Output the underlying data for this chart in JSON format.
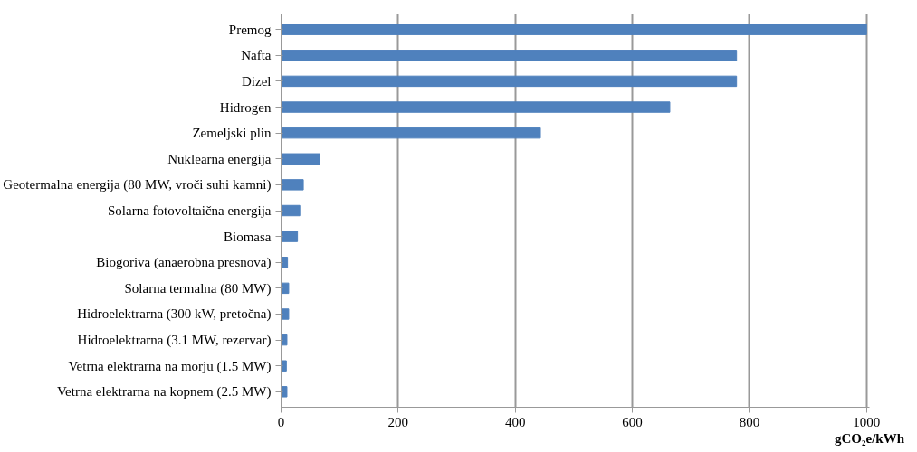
{
  "chart_data": {
    "type": "bar",
    "orientation": "horizontal",
    "xlabel": "gCO₂e/kWh",
    "categories": [
      "Premog",
      "Nafta",
      "Dizel",
      "Hidrogen",
      "Zemeljski plin",
      "Nuklearna energija",
      "Geotermalna energija (80 MW, vroči suhi kamni)",
      "Solarna fotovoltaična energija",
      "Biomasa",
      "Biogoriva (anaerobna presnova)",
      "Solarna termalna (80 MW)",
      "Hidroelektrarna (300 kW, pretočna)",
      "Hidroelektrarna (3.1 MW, rezervar)",
      "Vetrna elektrarna na morju (1.5 MW)",
      "Vetrna elektrarna na kopnem (2.5 MW)"
    ],
    "values": [
      1000,
      778,
      778,
      664,
      443,
      66,
      38,
      32,
      28,
      11,
      13,
      13,
      10,
      9,
      10
    ],
    "color": "#4f81bd",
    "xlim": [
      0,
      1000
    ],
    "xticks": [
      0,
      200,
      400,
      600,
      800,
      1000
    ],
    "grid": "x"
  }
}
